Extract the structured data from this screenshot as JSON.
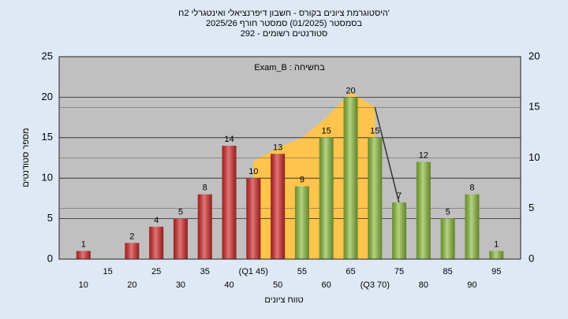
{
  "chart_data": {
    "type": "bar",
    "title": [
      "היסטוגרמת ציונים בקורס - חשבון דיפרנציאלי ואינטגרלי 2ח'",
      "בסמסטר  (01/2025)  סמסטר חורף 2025/26",
      "סטודנטים רשומים - 292"
    ],
    "annotation": "Exam_B : בחשיחה",
    "x_label": "טווח ציונים",
    "y_label": "מספר סטודנטים",
    "categories": [
      "10",
      "15",
      "20",
      "25",
      "30",
      "35",
      "40",
      "(Q1 45)",
      "50",
      "55",
      "60",
      "65",
      "(Q3 70)",
      "75",
      "80",
      "85",
      "90",
      "95"
    ],
    "values": [
      1,
      0,
      2,
      4,
      5,
      8,
      14,
      10,
      13,
      9,
      15,
      20,
      15,
      7,
      12,
      5,
      8,
      1
    ],
    "colors": [
      "#d42a2a",
      "#d42a2a",
      "#d42a2a",
      "#d42a2a",
      "#d42a2a",
      "#d42a2a",
      "#d42a2a",
      "#d42a2a",
      "#d42a2a",
      "#8cbd3c",
      "#8cbd3c",
      "#8cbd3c",
      "#8cbd3c",
      "#8cbd3c",
      "#8cbd3c",
      "#8cbd3c",
      "#8cbd3c",
      "#8cbd3c"
    ],
    "ylim": [
      0,
      25
    ],
    "yticks": [
      0,
      5,
      10,
      15,
      20,
      25
    ],
    "y2lim": [
      0,
      20
    ],
    "y2ticks": [
      0,
      5,
      10,
      15,
      20
    ],
    "y2_series": [
      {
        "type": "area",
        "axis": "y2",
        "color": "#ffc44d",
        "values": [
          null,
          null,
          null,
          null,
          null,
          null,
          null,
          9.7,
          11,
          12,
          14,
          16.5,
          15,
          null,
          null,
          null,
          null,
          null
        ]
      },
      {
        "type": "line",
        "axis": "y2",
        "color": "#333333",
        "values": [
          null,
          null,
          null,
          null,
          null,
          null,
          null,
          null,
          null,
          null,
          null,
          null,
          15,
          5.5,
          null,
          null,
          null,
          null
        ]
      }
    ],
    "grid": true
  }
}
